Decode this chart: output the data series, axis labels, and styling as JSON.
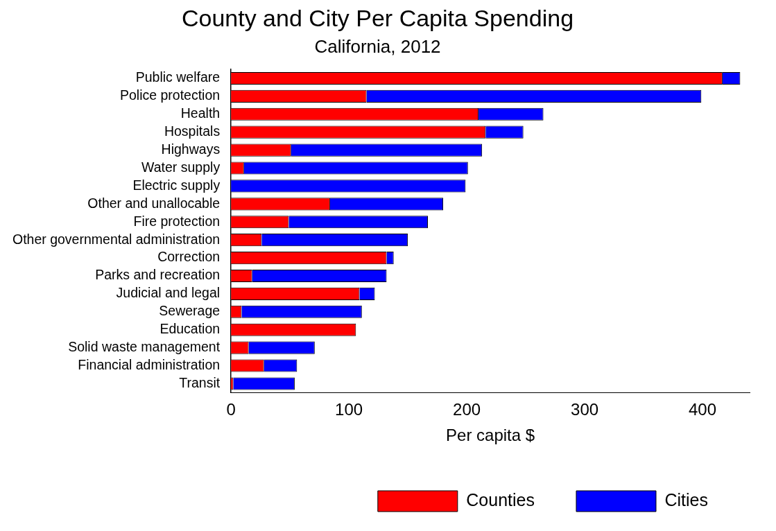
{
  "chart_data": {
    "type": "bar",
    "orientation": "horizontal",
    "stacked": true,
    "title": "County and City Per Capita Spending",
    "subtitle": "California, 2012",
    "xlabel": "Per capita $",
    "categories": [
      "Public welfare",
      "Police protection",
      "Health",
      "Hospitals",
      "Highways",
      "Water supply",
      "Electric supply",
      "Other and unallocable",
      "Fire protection",
      "Other governmental administration",
      "Correction",
      "Parks and recreation",
      "Judicial and legal",
      "Sewerage",
      "Education",
      "Solid waste management",
      "Financial administration",
      "Transit"
    ],
    "series": [
      {
        "name": "Counties",
        "color": "#ff0000",
        "values": [
          417,
          115,
          210,
          216,
          51,
          11,
          0,
          84,
          49,
          26,
          132,
          18,
          109,
          9,
          106,
          15,
          28,
          2
        ]
      },
      {
        "name": "Cities",
        "color": "#0000ff",
        "values": [
          15,
          284,
          55,
          32,
          162,
          190,
          199,
          96,
          118,
          124,
          6,
          114,
          13,
          102,
          0,
          56,
          28,
          52
        ]
      }
    ],
    "xlim": [
      0,
      440
    ],
    "xticks": [
      0,
      100,
      200,
      300,
      400
    ],
    "grid": false,
    "legend": "bottom"
  }
}
